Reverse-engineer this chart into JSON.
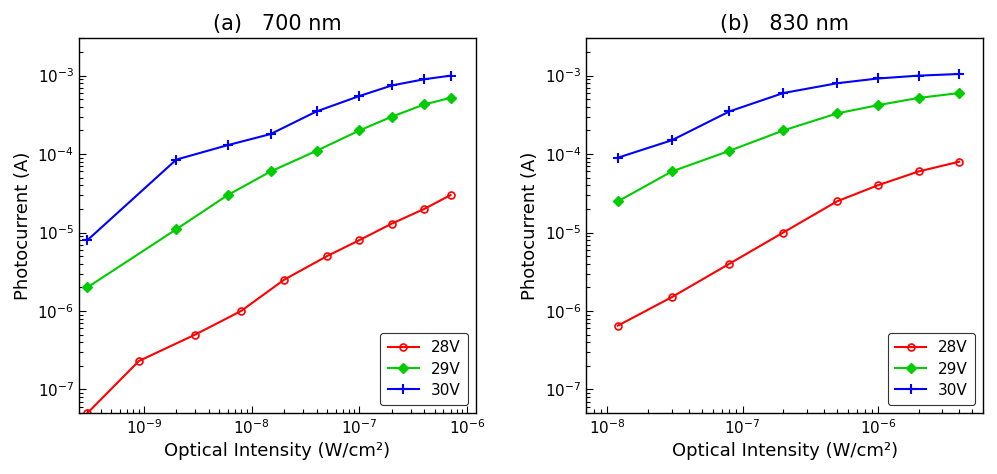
{
  "panel_a": {
    "title": "(a)   700 nm",
    "xlabel": "Optical Intensity (W/cm²)",
    "ylabel": "Photocurrent (A)",
    "xlim": [
      2.5e-10,
      1.2e-06
    ],
    "ylim": [
      5e-08,
      0.003
    ],
    "red_28V": {
      "x": [
        3e-10,
        9e-10,
        3e-09,
        8e-09,
        2e-08,
        5e-08,
        1e-07,
        2e-07,
        4e-07,
        7e-07
      ],
      "y": [
        5e-08,
        2.3e-07,
        5e-07,
        1e-06,
        2.5e-06,
        5e-06,
        8e-06,
        1.3e-05,
        2e-05,
        3e-05
      ]
    },
    "green_29V": {
      "x": [
        3e-10,
        2e-09,
        6e-09,
        1.5e-08,
        4e-08,
        1e-07,
        2e-07,
        4e-07,
        7e-07
      ],
      "y": [
        2e-06,
        1.1e-05,
        3e-05,
        6e-05,
        0.00011,
        0.0002,
        0.0003,
        0.00043,
        0.00052
      ]
    },
    "blue_30V": {
      "x": [
        3e-10,
        2e-09,
        6e-09,
        1.5e-08,
        4e-08,
        1e-07,
        2e-07,
        4e-07,
        7e-07
      ],
      "y": [
        8e-06,
        8.5e-05,
        0.00013,
        0.00018,
        0.00035,
        0.00055,
        0.00075,
        0.0009,
        0.001
      ]
    }
  },
  "panel_b": {
    "title": "(b)   830 nm",
    "xlabel": "Optical Intensity (W/cm²)",
    "ylabel": "Photocurrent (A)",
    "xlim": [
      7e-09,
      6e-06
    ],
    "ylim": [
      5e-08,
      0.003
    ],
    "red_28V": {
      "x": [
        1.2e-08,
        3e-08,
        8e-08,
        2e-07,
        5e-07,
        1e-06,
        2e-06,
        4e-06
      ],
      "y": [
        6.5e-07,
        1.5e-06,
        4e-06,
        1e-05,
        2.5e-05,
        4e-05,
        6e-05,
        8e-05
      ]
    },
    "green_29V": {
      "x": [
        1.2e-08,
        3e-08,
        8e-08,
        2e-07,
        5e-07,
        1e-06,
        2e-06,
        4e-06
      ],
      "y": [
        2.5e-05,
        6e-05,
        0.00011,
        0.0002,
        0.00033,
        0.00042,
        0.00052,
        0.0006
      ]
    },
    "blue_30V": {
      "x": [
        1.2e-08,
        3e-08,
        8e-08,
        2e-07,
        5e-07,
        1e-06,
        2e-06,
        4e-06
      ],
      "y": [
        9e-05,
        0.00015,
        0.00035,
        0.0006,
        0.0008,
        0.00092,
        0.001,
        0.00105
      ]
    }
  },
  "colors": {
    "red": "#FF0000",
    "green": "#00CC00",
    "blue": "#0000FF"
  },
  "legend_labels": [
    "28V",
    "29V",
    "30V"
  ],
  "title_fontsize": 15,
  "label_fontsize": 13,
  "tick_fontsize": 11
}
